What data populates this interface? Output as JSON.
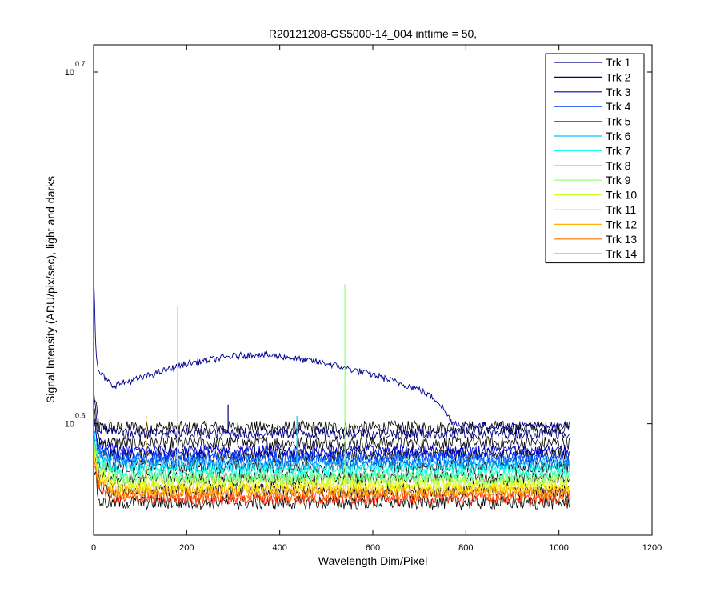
{
  "chart_data": {
    "type": "line",
    "title": "R20121208-GS5000-14_004 inttime = 50,",
    "xlabel": "Wavelength Dim/Pixel",
    "ylabel": "Signal Intensity (ADU/pix/sec), light and darks",
    "xlim": [
      0,
      1200
    ],
    "y_scale": "log",
    "ylim": [
      3.7,
      5.1
    ],
    "x_ticks": [
      0,
      200,
      400,
      600,
      800,
      1000,
      1200
    ],
    "y_ticks": [
      {
        "value": 3.98,
        "base": "10",
        "exponent": "0.6"
      },
      {
        "value": 5.01,
        "base": "10",
        "exponent": "0.7"
      }
    ],
    "grid": false,
    "legend_position": "top-right",
    "series": [
      {
        "name": "Trk 1",
        "color": "#00008f",
        "x": [
          0,
          5,
          10,
          40,
          100,
          200,
          300,
          350,
          400,
          500,
          600,
          700,
          740,
          770,
          800,
          900,
          1000,
          1022
        ],
        "y": [
          4.4,
          4.16,
          4.12,
          4.08,
          4.1,
          4.14,
          4.16,
          4.165,
          4.16,
          4.14,
          4.11,
          4.07,
          4.04,
          3.985,
          3.975,
          3.975,
          3.975,
          3.975
        ]
      },
      {
        "name": "Trk 2",
        "color": "#000080",
        "x": [
          0,
          10,
          50,
          200,
          500,
          800,
          1022
        ],
        "y": [
          4.05,
          3.97,
          3.955,
          3.955,
          3.955,
          3.955,
          3.955
        ]
      },
      {
        "name": "Trk 3",
        "color": "#0000cf",
        "x": [
          0,
          10,
          50,
          200,
          500,
          800,
          1022
        ],
        "y": [
          4.0,
          3.93,
          3.91,
          3.91,
          3.91,
          3.91,
          3.91
        ]
      },
      {
        "name": "Trk 4",
        "color": "#0040ff",
        "x": [
          0,
          10,
          50,
          200,
          500,
          800,
          1022
        ],
        "y": [
          3.99,
          3.92,
          3.895,
          3.895,
          3.895,
          3.895,
          3.895
        ]
      },
      {
        "name": "Trk 5",
        "color": "#0080ff",
        "x": [
          0,
          10,
          50,
          200,
          500,
          800,
          1022
        ],
        "y": [
          3.98,
          3.91,
          3.885,
          3.885,
          3.885,
          3.885,
          3.885
        ]
      },
      {
        "name": "Trk 6",
        "color": "#00c0ff",
        "x": [
          0,
          10,
          50,
          200,
          500,
          800,
          1022
        ],
        "y": [
          3.97,
          3.9,
          3.875,
          3.875,
          3.875,
          3.875,
          3.875
        ]
      },
      {
        "name": "Trk 7",
        "color": "#10ffef",
        "x": [
          0,
          10,
          50,
          200,
          500,
          800,
          1022
        ],
        "y": [
          3.96,
          3.89,
          3.862,
          3.862,
          3.862,
          3.862,
          3.862
        ]
      },
      {
        "name": "Trk 8",
        "color": "#50ffaf",
        "x": [
          0,
          10,
          50,
          200,
          500,
          800,
          1022
        ],
        "y": [
          3.95,
          3.88,
          3.85,
          3.85,
          3.85,
          3.85,
          3.85
        ]
      },
      {
        "name": "Trk 9",
        "color": "#90ff70",
        "x": [
          0,
          10,
          50,
          200,
          500,
          800,
          1022
        ],
        "y": [
          3.94,
          3.87,
          3.84,
          3.84,
          3.84,
          3.84,
          3.84
        ]
      },
      {
        "name": "Trk 10",
        "color": "#cfff30",
        "x": [
          0,
          10,
          50,
          200,
          500,
          800,
          1022
        ],
        "y": [
          3.93,
          3.86,
          3.83,
          3.83,
          3.83,
          3.83,
          3.83
        ]
      },
      {
        "name": "Trk 11",
        "color": "#ffef00",
        "x": [
          0,
          10,
          50,
          200,
          500,
          800,
          1022
        ],
        "y": [
          3.92,
          3.85,
          3.82,
          3.82,
          3.82,
          3.82,
          3.82
        ]
      },
      {
        "name": "Trk 12",
        "color": "#ffb000",
        "x": [
          0,
          10,
          50,
          200,
          500,
          800,
          1022
        ],
        "y": [
          3.91,
          3.84,
          3.81,
          3.81,
          3.81,
          3.81,
          3.81
        ]
      },
      {
        "name": "Trk 13",
        "color": "#ff7000",
        "x": [
          0,
          10,
          50,
          200,
          500,
          800,
          1022
        ],
        "y": [
          3.9,
          3.83,
          3.8,
          3.8,
          3.8,
          3.8,
          3.8
        ]
      },
      {
        "name": "Trk 14",
        "color": "#ff3000",
        "x": [
          0,
          10,
          50,
          200,
          500,
          800,
          1022
        ],
        "y": [
          3.89,
          3.82,
          3.79,
          3.79,
          3.79,
          3.79,
          3.79
        ]
      }
    ],
    "spikes": [
      {
        "series": "Trk 12",
        "x": 113,
        "y": 4.0
      },
      {
        "series": "Trk 11",
        "x": 180,
        "y": 4.3
      },
      {
        "series": "Trk 2",
        "x": 289,
        "y": 4.03
      },
      {
        "series": "Trk 6",
        "x": 437,
        "y": 4.0
      },
      {
        "series": "Trk 9",
        "x": 540,
        "y": 4.36
      }
    ]
  }
}
